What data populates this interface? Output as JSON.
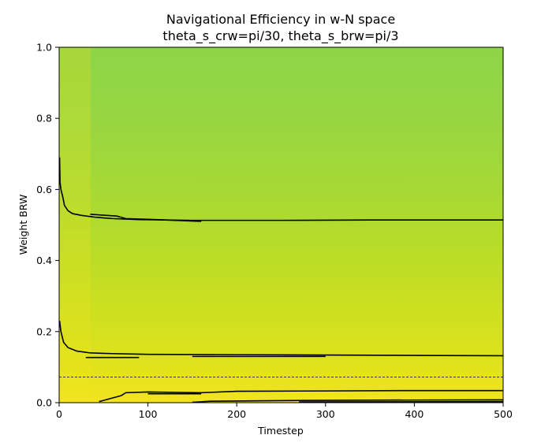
{
  "chart_data": {
    "type": "heatmap",
    "title": "Navigational Efficiency in w-N space",
    "subtitle": "theta_s_crw=pi/30, theta_s_brw=pi/3",
    "xlabel": "Timestep",
    "ylabel": "Weight BRW",
    "xlim": [
      0,
      500
    ],
    "ylim": [
      0.0,
      1.0
    ],
    "x_ticks": [
      "0",
      "100",
      "200",
      "300",
      "400",
      "500"
    ],
    "y_ticks": [
      "0.0",
      "0.2",
      "0.4",
      "0.6",
      "0.8",
      "1.0"
    ],
    "x_tick_values": [
      0,
      100,
      200,
      300,
      400,
      500
    ],
    "y_tick_values": [
      0.0,
      0.2,
      0.4,
      0.6,
      0.8,
      1.0
    ],
    "colormap": "viridis",
    "color_gradient": [
      {
        "weight": 0.0,
        "color": "#f2e41e"
      },
      {
        "weight": 0.1,
        "color": "#e1e21c"
      },
      {
        "weight": 0.2,
        "color": "#d4e11e"
      },
      {
        "weight": 0.4,
        "color": "#bcdd26"
      },
      {
        "weight": 0.6,
        "color": "#a6d935"
      },
      {
        "weight": 0.8,
        "color": "#97d642"
      },
      {
        "weight": 1.0,
        "color": "#8ed547"
      }
    ],
    "dashed_reference_line": {
      "y": 0.072,
      "color": "#000000"
    },
    "contour_color": "#000000",
    "contours": [
      {
        "level": "upper",
        "points": [
          [
            0.5,
            0.69
          ],
          [
            1,
            0.62
          ],
          [
            2,
            0.6
          ],
          [
            4,
            0.58
          ],
          [
            6,
            0.555
          ],
          [
            10,
            0.54
          ],
          [
            15,
            0.532
          ],
          [
            25,
            0.527
          ],
          [
            40,
            0.522
          ],
          [
            60,
            0.518
          ],
          [
            90,
            0.515
          ],
          [
            150,
            0.513
          ],
          [
            250,
            0.513
          ],
          [
            350,
            0.514
          ],
          [
            500,
            0.514
          ]
        ]
      },
      {
        "level": "upper-dash",
        "points": [
          [
            35,
            0.53
          ],
          [
            65,
            0.525
          ],
          [
            75,
            0.518
          ],
          [
            100,
            0.516
          ],
          [
            160,
            0.51
          ]
        ]
      },
      {
        "level": "middle",
        "points": [
          [
            0.5,
            0.23
          ],
          [
            2,
            0.2
          ],
          [
            5,
            0.17
          ],
          [
            10,
            0.155
          ],
          [
            20,
            0.145
          ],
          [
            35,
            0.14
          ],
          [
            60,
            0.138
          ],
          [
            100,
            0.136
          ],
          [
            200,
            0.135
          ],
          [
            300,
            0.134
          ],
          [
            400,
            0.133
          ],
          [
            500,
            0.132
          ]
        ]
      },
      {
        "level": "middle-dash",
        "points": [
          [
            30,
            0.127
          ],
          [
            90,
            0.127
          ]
        ]
      },
      {
        "level": "middle-dash-2",
        "points": [
          [
            150,
            0.13
          ],
          [
            300,
            0.13
          ]
        ]
      },
      {
        "level": "lower",
        "points": [
          [
            45,
            0.003
          ],
          [
            70,
            0.02
          ],
          [
            75,
            0.028
          ],
          [
            100,
            0.03
          ],
          [
            160,
            0.028
          ],
          [
            200,
            0.032
          ],
          [
            300,
            0.033
          ],
          [
            400,
            0.034
          ],
          [
            500,
            0.034
          ]
        ]
      },
      {
        "level": "lower-dash",
        "points": [
          [
            100,
            0.025
          ],
          [
            160,
            0.025
          ]
        ]
      },
      {
        "level": "bottom",
        "points": [
          [
            150,
            0.001
          ],
          [
            170,
            0.004
          ],
          [
            260,
            0.006
          ],
          [
            350,
            0.007
          ],
          [
            500,
            0.008
          ]
        ]
      },
      {
        "level": "bottom-dash",
        "points": [
          [
            270,
            0.002
          ],
          [
            500,
            0.003
          ]
        ]
      }
    ]
  }
}
